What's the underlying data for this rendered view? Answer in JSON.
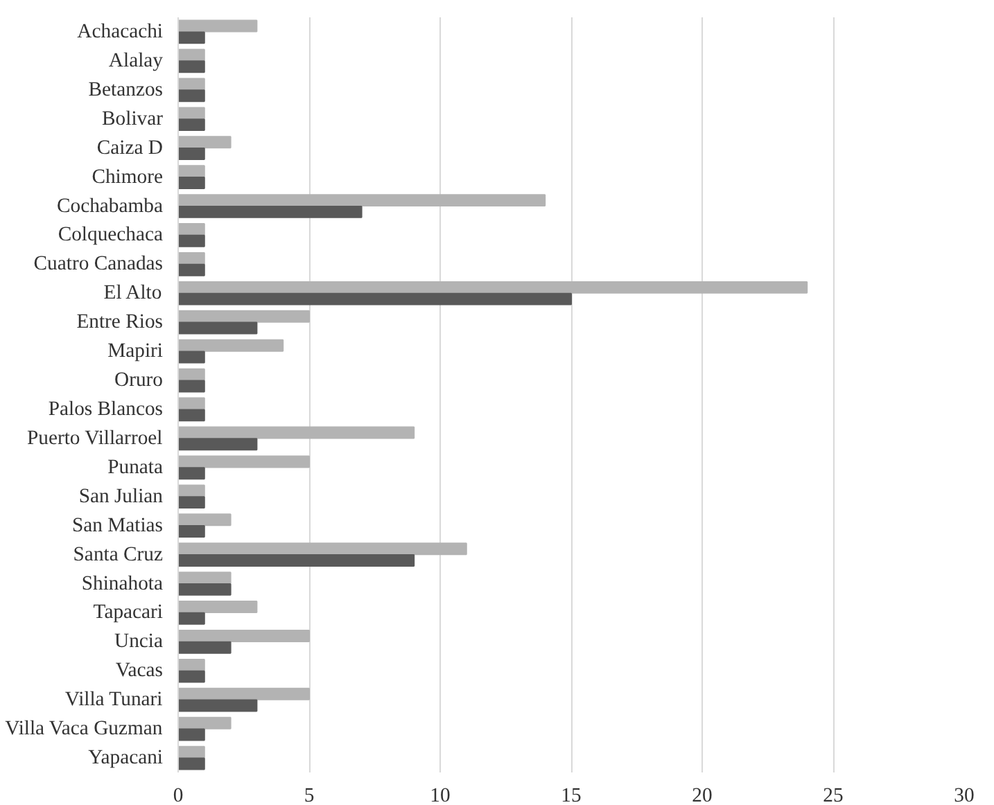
{
  "chart_data": {
    "type": "bar",
    "orientation": "horizontal",
    "categories": [
      "Achacachi",
      "Alalay",
      "Betanzos",
      "Bolivar",
      "Caiza D",
      "Chimore",
      "Cochabamba",
      "Colquechaca",
      "Cuatro Canadas",
      "El Alto",
      "Entre Rios",
      "Mapiri",
      "Oruro",
      "Palos Blancos",
      "Puerto Villarroel",
      "Punata",
      "San Julian",
      "San Matias",
      "Santa Cruz",
      "Shinahota",
      "Tapacari",
      "Uncia",
      "Vacas",
      "Villa Tunari",
      "Villa Vaca Guzman",
      "Yapacani"
    ],
    "series": [
      {
        "color": "#b3b3b3",
        "values": [
          3,
          1,
          1,
          1,
          2,
          1,
          14,
          1,
          1,
          24,
          5,
          4,
          1,
          1,
          9,
          5,
          1,
          2,
          11,
          2,
          3,
          5,
          1,
          5,
          2,
          1
        ]
      },
      {
        "color": "#595959",
        "values": [
          1,
          1,
          1,
          1,
          1,
          1,
          7,
          1,
          1,
          15,
          3,
          1,
          1,
          1,
          3,
          1,
          1,
          1,
          9,
          2,
          1,
          2,
          1,
          3,
          1,
          1
        ]
      }
    ],
    "xlim": [
      0,
      30
    ],
    "xticks": [
      0,
      5,
      10,
      15,
      20,
      25,
      30
    ],
    "grid": "x"
  }
}
